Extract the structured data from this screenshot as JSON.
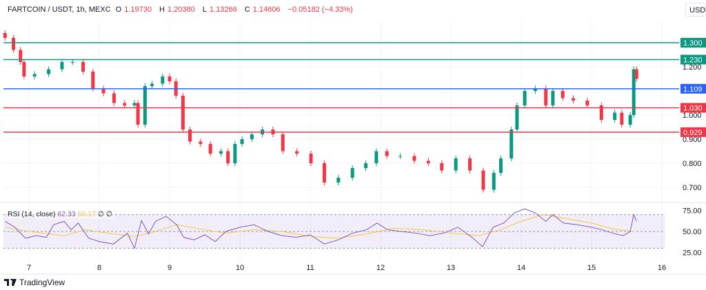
{
  "header": {
    "symbol": "FARTCOIN / USDT, 1h, MEXC",
    "open_label": "O",
    "open": "1.19730",
    "high_label": "H",
    "high": "1.20380",
    "low_label": "L",
    "low": "1.13266",
    "close_label": "C",
    "close": "1.14606",
    "change": "−0.05182 (−4.33%)"
  },
  "currency_button": "USDT",
  "rsi_legend": {
    "title": "RSI (14, close)",
    "rsi": "62.33",
    "ma": "50.17",
    "extra1": "∅",
    "extra2": "∅"
  },
  "branding": {
    "logo_icon": "tradingview-logo-icon",
    "name": "TradingView"
  },
  "colors": {
    "up": "#089981",
    "down": "#f23645",
    "blue": "#2962ff",
    "rsi": "#7e57c2",
    "rsi_ma": "#f5c642"
  },
  "chart_data": [
    {
      "type": "candlestick",
      "title": "FARTCOIN / USDT, 1h, MEXC",
      "xlabel": "",
      "ylabel": "",
      "x_ticks": [
        "7",
        "8",
        "9",
        "10",
        "11",
        "12",
        "13",
        "14",
        "15",
        "16"
      ],
      "xlim": [
        6.63,
        16.2
      ],
      "y_ticks": [
        "1.200",
        "1.000",
        "0.900",
        "0.800",
        "0.700"
      ],
      "ylim": [
        0.63,
        1.39
      ],
      "grid": true,
      "closes": [
        [
          6.66,
          1.32
        ],
        [
          6.78,
          1.27
        ],
        [
          6.88,
          1.22
        ],
        [
          6.93,
          1.16
        ],
        [
          7.08,
          1.17
        ],
        [
          7.28,
          1.19
        ],
        [
          7.47,
          1.22
        ],
        [
          7.62,
          1.22
        ],
        [
          7.77,
          1.18
        ],
        [
          7.91,
          1.11
        ],
        [
          8.06,
          1.09
        ],
        [
          8.21,
          1.05
        ],
        [
          8.36,
          1.04
        ],
        [
          8.5,
          1.05
        ],
        [
          8.55,
          0.96
        ],
        [
          8.65,
          1.12
        ],
        [
          8.75,
          1.13
        ],
        [
          8.9,
          1.16
        ],
        [
          9.0,
          1.14
        ],
        [
          9.09,
          1.08
        ],
        [
          9.19,
          0.94
        ],
        [
          9.29,
          0.89
        ],
        [
          9.44,
          0.88
        ],
        [
          9.58,
          0.84
        ],
        [
          9.73,
          0.85
        ],
        [
          9.83,
          0.8
        ],
        [
          9.93,
          0.88
        ],
        [
          10.03,
          0.9
        ],
        [
          10.17,
          0.92
        ],
        [
          10.32,
          0.94
        ],
        [
          10.47,
          0.92
        ],
        [
          10.61,
          0.85
        ],
        [
          10.81,
          0.84
        ],
        [
          11.01,
          0.8
        ],
        [
          11.2,
          0.72
        ],
        [
          11.4,
          0.74
        ],
        [
          11.6,
          0.78
        ],
        [
          11.79,
          0.8
        ],
        [
          11.94,
          0.85
        ],
        [
          12.09,
          0.83
        ],
        [
          12.28,
          0.83
        ],
        [
          12.48,
          0.81
        ],
        [
          12.68,
          0.8
        ],
        [
          12.87,
          0.77
        ],
        [
          13.07,
          0.82
        ],
        [
          13.27,
          0.77
        ],
        [
          13.46,
          0.69
        ],
        [
          13.61,
          0.76
        ],
        [
          13.71,
          0.82
        ],
        [
          13.86,
          0.94
        ],
        [
          13.94,
          1.04
        ],
        [
          14.05,
          1.1
        ],
        [
          14.2,
          1.11
        ],
        [
          14.35,
          1.04
        ],
        [
          14.45,
          1.1
        ],
        [
          14.59,
          1.07
        ],
        [
          14.74,
          1.06
        ],
        [
          14.94,
          1.04
        ],
        [
          15.14,
          0.98
        ],
        [
          15.33,
          1.01
        ],
        [
          15.43,
          0.96
        ],
        [
          15.55,
          1.0
        ],
        [
          15.6,
          1.19
        ],
        [
          15.64,
          1.15
        ]
      ],
      "levels": [
        {
          "value": 1.3,
          "label": "1.300",
          "color": "#089981"
        },
        {
          "value": 1.23,
          "label": "1.230",
          "color": "#089981"
        },
        {
          "value": 1.109,
          "label": "1.109",
          "color": "#2962ff"
        },
        {
          "value": 1.03,
          "label": "1.030",
          "color": "#f23645"
        },
        {
          "value": 0.929,
          "label": "0.929",
          "color": "#f23645"
        }
      ]
    },
    {
      "type": "line",
      "title": "RSI (14, close)",
      "ylim": [
        15,
        85
      ],
      "y_ticks": [
        "75.00",
        "50.00",
        "25.00"
      ],
      "bands": [
        70,
        50,
        30
      ],
      "series": [
        {
          "name": "RSI",
          "color": "#7e57c2",
          "points": [
            [
              6.66,
              62
            ],
            [
              6.8,
              55
            ],
            [
              6.95,
              42
            ],
            [
              7.1,
              45
            ],
            [
              7.25,
              43
            ],
            [
              7.35,
              58
            ],
            [
              7.5,
              62
            ],
            [
              7.6,
              52
            ],
            [
              7.7,
              60
            ],
            [
              7.85,
              42
            ],
            [
              8.0,
              38
            ],
            [
              8.2,
              35
            ],
            [
              8.4,
              48
            ],
            [
              8.5,
              30
            ],
            [
              8.6,
              63
            ],
            [
              8.7,
              47
            ],
            [
              8.8,
              62
            ],
            [
              8.95,
              68
            ],
            [
              9.1,
              58
            ],
            [
              9.2,
              43
            ],
            [
              9.35,
              40
            ],
            [
              9.5,
              46
            ],
            [
              9.65,
              38
            ],
            [
              9.8,
              50
            ],
            [
              10.0,
              55
            ],
            [
              10.2,
              58
            ],
            [
              10.4,
              50
            ],
            [
              10.6,
              45
            ],
            [
              10.8,
              43
            ],
            [
              11.0,
              46
            ],
            [
              11.2,
              35
            ],
            [
              11.4,
              40
            ],
            [
              11.6,
              48
            ],
            [
              11.8,
              52
            ],
            [
              11.95,
              60
            ],
            [
              12.1,
              52
            ],
            [
              12.3,
              50
            ],
            [
              12.5,
              48
            ],
            [
              12.7,
              45
            ],
            [
              12.9,
              48
            ],
            [
              13.1,
              55
            ],
            [
              13.3,
              43
            ],
            [
              13.45,
              32
            ],
            [
              13.6,
              55
            ],
            [
              13.75,
              60
            ],
            [
              13.9,
              72
            ],
            [
              14.05,
              77
            ],
            [
              14.2,
              72
            ],
            [
              14.35,
              62
            ],
            [
              14.45,
              70
            ],
            [
              14.6,
              60
            ],
            [
              14.8,
              58
            ],
            [
              15.0,
              55
            ],
            [
              15.15,
              52
            ],
            [
              15.3,
              48
            ],
            [
              15.45,
              45
            ],
            [
              15.55,
              50
            ],
            [
              15.6,
              70
            ],
            [
              15.64,
              62
            ]
          ]
        },
        {
          "name": "MA",
          "color": "#f5c642",
          "points": [
            [
              6.66,
              55
            ],
            [
              7.0,
              50
            ],
            [
              7.5,
              45
            ],
            [
              7.8,
              52
            ],
            [
              8.2,
              47
            ],
            [
              8.5,
              44
            ],
            [
              8.8,
              50
            ],
            [
              9.1,
              58
            ],
            [
              9.5,
              52
            ],
            [
              9.8,
              48
            ],
            [
              10.2,
              52
            ],
            [
              10.6,
              50
            ],
            [
              11.0,
              44
            ],
            [
              11.4,
              42
            ],
            [
              11.8,
              47
            ],
            [
              12.2,
              54
            ],
            [
              12.6,
              52
            ],
            [
              13.0,
              48
            ],
            [
              13.4,
              45
            ],
            [
              13.7,
              52
            ],
            [
              14.0,
              62
            ],
            [
              14.3,
              70
            ],
            [
              14.6,
              66
            ],
            [
              15.0,
              60
            ],
            [
              15.3,
              53
            ],
            [
              15.6,
              50
            ]
          ]
        }
      ]
    }
  ]
}
